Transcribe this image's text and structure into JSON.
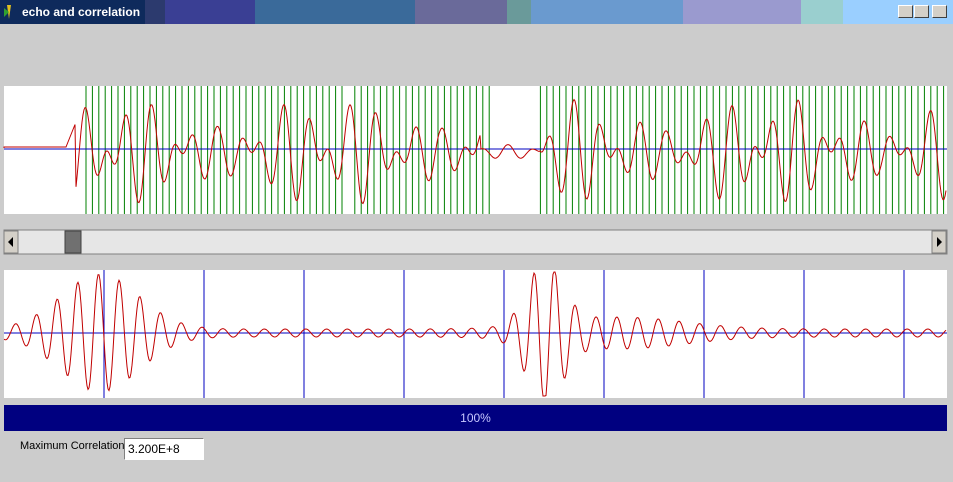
{
  "window": {
    "title": "echo and correlation"
  },
  "progress": {
    "label": "100%"
  },
  "fields": [
    {
      "label": "Maximum Correlation",
      "value": "3.200E+8"
    }
  ]
}
